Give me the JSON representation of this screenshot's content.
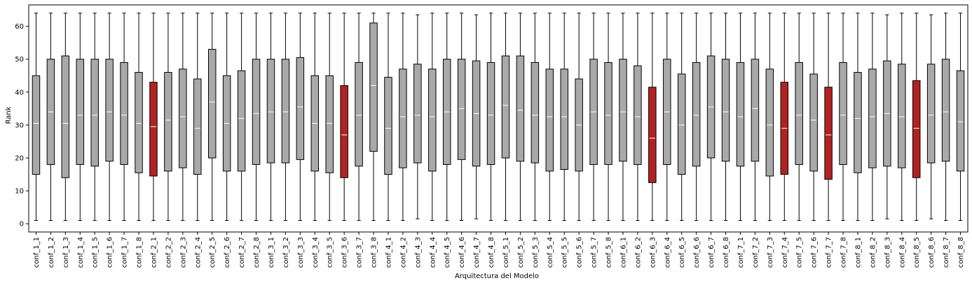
{
  "chart_data": {
    "type": "boxplot",
    "xlabel": "Arquitectura del Modelo",
    "ylabel": "Rank",
    "ylim": [
      -2.5,
      66.5
    ],
    "yticks": [
      0,
      10,
      20,
      30,
      40,
      50,
      60
    ],
    "grid": false,
    "colors": {
      "default": "#a9a9a9",
      "highlight": "#b22222",
      "median_line": "#ffffff",
      "edge": "#000000"
    },
    "categories": [
      "conf_1_1",
      "conf_1_2",
      "conf_1_3",
      "conf_1_4",
      "conf_1_5",
      "conf_1_6",
      "conf_1_7",
      "conf_1_8",
      "conf_2_1",
      "conf_2_2",
      "conf_2_3",
      "conf_2_4",
      "conf_2_5",
      "conf_2_6",
      "conf_2_7",
      "conf_2_8",
      "conf_3_1",
      "conf_3_2",
      "conf_3_3",
      "conf_3_4",
      "conf_3_5",
      "conf_3_6",
      "conf_3_7",
      "conf_3_8",
      "conf_4_1",
      "conf_4_2",
      "conf_4_3",
      "conf_4_4",
      "conf_4_5",
      "conf_4_6",
      "conf_4_7",
      "conf_4_8",
      "conf_5_1",
      "conf_5_2",
      "conf_5_3",
      "conf_5_4",
      "conf_5_5",
      "conf_5_6",
      "conf_5_7",
      "conf_5_8",
      "conf_6_1",
      "conf_6_2",
      "conf_6_3",
      "conf_6_4",
      "conf_6_5",
      "conf_6_6",
      "conf_6_7",
      "conf_6_8",
      "conf_7_1",
      "conf_7_2",
      "conf_7_3",
      "conf_7_4",
      "conf_7_5",
      "conf_7_6",
      "conf_7_7",
      "conf_7_8",
      "conf_8_1",
      "conf_8_2",
      "conf_8_3",
      "conf_8_4",
      "conf_8_5",
      "conf_8_6",
      "conf_8_7",
      "conf_8_8"
    ],
    "boxes": [
      {
        "whislo": 1,
        "q1": 15,
        "med": 30.5,
        "q3": 45,
        "whishi": 64,
        "highlight": false
      },
      {
        "whislo": 1,
        "q1": 18,
        "med": 34,
        "q3": 50,
        "whishi": 64,
        "highlight": false
      },
      {
        "whislo": 1,
        "q1": 14,
        "med": 30.5,
        "q3": 51,
        "whishi": 64,
        "highlight": false
      },
      {
        "whislo": 1,
        "q1": 18,
        "med": 33,
        "q3": 50,
        "whishi": 64,
        "highlight": false
      },
      {
        "whislo": 1,
        "q1": 17.5,
        "med": 33,
        "q3": 50,
        "whishi": 64,
        "highlight": false
      },
      {
        "whislo": 1,
        "q1": 19,
        "med": 34,
        "q3": 50,
        "whishi": 64,
        "highlight": false
      },
      {
        "whislo": 1,
        "q1": 18,
        "med": 33,
        "q3": 49,
        "whishi": 64,
        "highlight": false
      },
      {
        "whislo": 1,
        "q1": 15.5,
        "med": 30.5,
        "q3": 46,
        "whishi": 64,
        "highlight": false
      },
      {
        "whislo": 1,
        "q1": 14.5,
        "med": 29.5,
        "q3": 43,
        "whishi": 64,
        "highlight": true
      },
      {
        "whislo": 1,
        "q1": 16,
        "med": 31.5,
        "q3": 46,
        "whishi": 64,
        "highlight": false
      },
      {
        "whislo": 1,
        "q1": 17,
        "med": 32.5,
        "q3": 47,
        "whishi": 64,
        "highlight": false
      },
      {
        "whislo": 1,
        "q1": 15,
        "med": 29,
        "q3": 44,
        "whishi": 64,
        "highlight": false
      },
      {
        "whislo": 1,
        "q1": 20,
        "med": 37,
        "q3": 53,
        "whishi": 64,
        "highlight": false
      },
      {
        "whislo": 1,
        "q1": 16,
        "med": 30.5,
        "q3": 45,
        "whishi": 64,
        "highlight": false
      },
      {
        "whislo": 1,
        "q1": 16,
        "med": 32,
        "q3": 46.5,
        "whishi": 64,
        "highlight": false
      },
      {
        "whislo": 1,
        "q1": 18,
        "med": 33.5,
        "q3": 50,
        "whishi": 64,
        "highlight": false
      },
      {
        "whislo": 1,
        "q1": 18.5,
        "med": 34,
        "q3": 50,
        "whishi": 64,
        "highlight": false
      },
      {
        "whislo": 1,
        "q1": 18.5,
        "med": 34,
        "q3": 50,
        "whishi": 64,
        "highlight": false
      },
      {
        "whislo": 1,
        "q1": 19.5,
        "med": 35.5,
        "q3": 50.5,
        "whishi": 64,
        "highlight": false
      },
      {
        "whislo": 1,
        "q1": 16,
        "med": 30.5,
        "q3": 45,
        "whishi": 64,
        "highlight": false
      },
      {
        "whislo": 1,
        "q1": 15.5,
        "med": 30.5,
        "q3": 45,
        "whishi": 64,
        "highlight": false
      },
      {
        "whislo": 1,
        "q1": 14,
        "med": 27,
        "q3": 42,
        "whishi": 64,
        "highlight": true
      },
      {
        "whislo": 1,
        "q1": 17.5,
        "med": 33,
        "q3": 49,
        "whishi": 64,
        "highlight": false
      },
      {
        "whislo": 1,
        "q1": 22,
        "med": 42,
        "q3": 61,
        "whishi": 64,
        "highlight": false
      },
      {
        "whislo": 1,
        "q1": 15,
        "med": 29,
        "q3": 44.5,
        "whishi": 64,
        "highlight": false
      },
      {
        "whislo": 1,
        "q1": 17,
        "med": 32.5,
        "q3": 47,
        "whishi": 64,
        "highlight": false
      },
      {
        "whislo": 1.5,
        "q1": 18.5,
        "med": 33,
        "q3": 48.5,
        "whishi": 63.5,
        "highlight": false
      },
      {
        "whislo": 1,
        "q1": 16,
        "med": 32.5,
        "q3": 47,
        "whishi": 64,
        "highlight": false
      },
      {
        "whislo": 1,
        "q1": 18,
        "med": 34,
        "q3": 50,
        "whishi": 64,
        "highlight": false
      },
      {
        "whislo": 1,
        "q1": 19.5,
        "med": 35,
        "q3": 50,
        "whishi": 64,
        "highlight": false
      },
      {
        "whislo": 1.5,
        "q1": 17.5,
        "med": 33.5,
        "q3": 49.5,
        "whishi": 63.5,
        "highlight": false
      },
      {
        "whislo": 1,
        "q1": 18,
        "med": 33,
        "q3": 49,
        "whishi": 64,
        "highlight": false
      },
      {
        "whislo": 1,
        "q1": 20,
        "med": 36,
        "q3": 51,
        "whishi": 64,
        "highlight": false
      },
      {
        "whislo": 1,
        "q1": 19,
        "med": 34.5,
        "q3": 51,
        "whishi": 64,
        "highlight": false
      },
      {
        "whislo": 1,
        "q1": 18.5,
        "med": 33,
        "q3": 49,
        "whishi": 64,
        "highlight": false
      },
      {
        "whislo": 1,
        "q1": 16,
        "med": 32.5,
        "q3": 47,
        "whishi": 64,
        "highlight": false
      },
      {
        "whislo": 1,
        "q1": 16.5,
        "med": 32.5,
        "q3": 47,
        "whishi": 64,
        "highlight": false
      },
      {
        "whislo": 1,
        "q1": 16,
        "med": 30,
        "q3": 44,
        "whishi": 64,
        "highlight": false
      },
      {
        "whislo": 1,
        "q1": 18,
        "med": 34,
        "q3": 50,
        "whishi": 64,
        "highlight": false
      },
      {
        "whislo": 1,
        "q1": 18,
        "med": 33,
        "q3": 49,
        "whishi": 64,
        "highlight": false
      },
      {
        "whislo": 1,
        "q1": 19,
        "med": 34,
        "q3": 50,
        "whishi": 64,
        "highlight": false
      },
      {
        "whislo": 1,
        "q1": 18,
        "med": 32.5,
        "q3": 48,
        "whishi": 64,
        "highlight": false
      },
      {
        "whislo": 1,
        "q1": 12.5,
        "med": 26,
        "q3": 41.5,
        "whishi": 64,
        "highlight": true
      },
      {
        "whislo": 1,
        "q1": 18,
        "med": 34,
        "q3": 50,
        "whishi": 64,
        "highlight": false
      },
      {
        "whislo": 1,
        "q1": 15,
        "med": 30,
        "q3": 45.5,
        "whishi": 64,
        "highlight": false
      },
      {
        "whislo": 1,
        "q1": 17.5,
        "med": 33,
        "q3": 49,
        "whishi": 64,
        "highlight": false
      },
      {
        "whislo": 1,
        "q1": 20,
        "med": 35.5,
        "q3": 51,
        "whishi": 64,
        "highlight": false
      },
      {
        "whislo": 1,
        "q1": 19,
        "med": 34,
        "q3": 50,
        "whishi": 64,
        "highlight": false
      },
      {
        "whislo": 1,
        "q1": 17.5,
        "med": 32.5,
        "q3": 49,
        "whishi": 64,
        "highlight": false
      },
      {
        "whislo": 1,
        "q1": 19,
        "med": 35,
        "q3": 50,
        "whishi": 64,
        "highlight": false
      },
      {
        "whislo": 1,
        "q1": 14.5,
        "med": 30,
        "q3": 47,
        "whishi": 64,
        "highlight": false
      },
      {
        "whislo": 1,
        "q1": 15,
        "med": 29,
        "q3": 43,
        "whishi": 64,
        "highlight": true
      },
      {
        "whislo": 1,
        "q1": 18,
        "med": 33,
        "q3": 49,
        "whishi": 64,
        "highlight": false
      },
      {
        "whislo": 1,
        "q1": 16,
        "med": 31.5,
        "q3": 45.5,
        "whishi": 64,
        "highlight": false
      },
      {
        "whislo": 1,
        "q1": 13.5,
        "med": 27,
        "q3": 41.5,
        "whishi": 64,
        "highlight": true
      },
      {
        "whislo": 1,
        "q1": 18,
        "med": 33,
        "q3": 49,
        "whishi": 64,
        "highlight": false
      },
      {
        "whislo": 1,
        "q1": 15.5,
        "med": 32,
        "q3": 46,
        "whishi": 64,
        "highlight": false
      },
      {
        "whislo": 1,
        "q1": 17,
        "med": 32.5,
        "q3": 47,
        "whishi": 64,
        "highlight": false
      },
      {
        "whislo": 1.5,
        "q1": 17.5,
        "med": 33.5,
        "q3": 49.5,
        "whishi": 63.5,
        "highlight": false
      },
      {
        "whislo": 1,
        "q1": 17,
        "med": 32.5,
        "q3": 48.5,
        "whishi": 64,
        "highlight": false
      },
      {
        "whislo": 1,
        "q1": 14,
        "med": 29,
        "q3": 43.5,
        "whishi": 64,
        "highlight": true
      },
      {
        "whislo": 1.5,
        "q1": 18.5,
        "med": 33,
        "q3": 48.5,
        "whishi": 63.5,
        "highlight": false
      },
      {
        "whislo": 1,
        "q1": 19,
        "med": 34,
        "q3": 50,
        "whishi": 64,
        "highlight": false
      },
      {
        "whislo": 1,
        "q1": 16,
        "med": 31,
        "q3": 46.5,
        "whishi": 64,
        "highlight": false
      }
    ]
  }
}
